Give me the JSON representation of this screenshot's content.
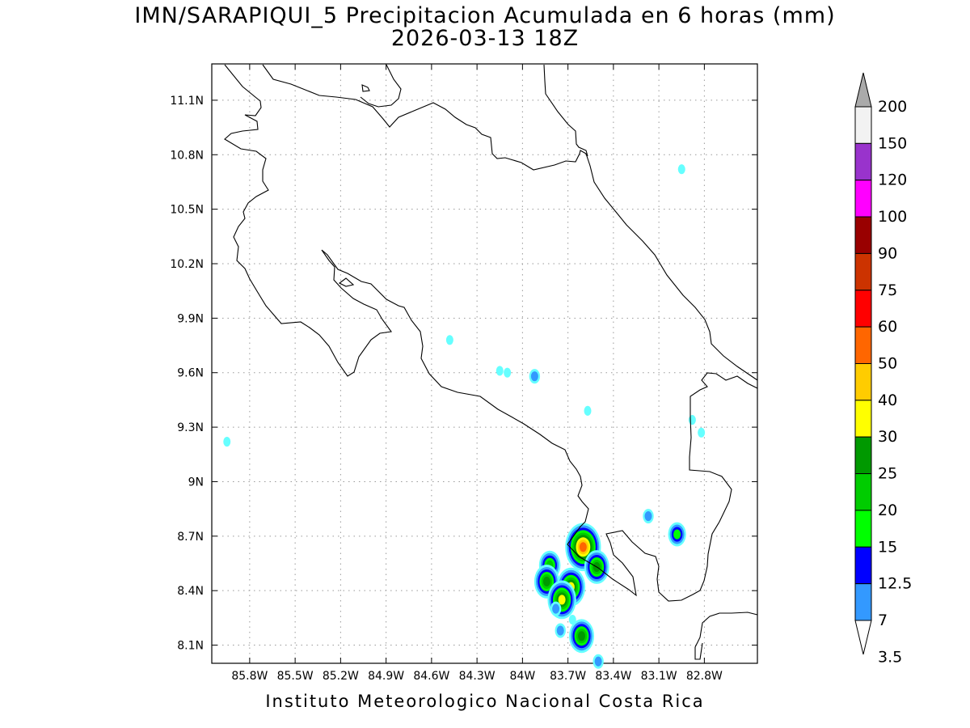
{
  "title": {
    "line1": "IMN/SARAPIQUI_5 Precipitacion Acumulada en 6 horas (mm)",
    "line2": "2026-03-13 18Z"
  },
  "footer": "Instituto Meteorologico Nacional Costa Rica",
  "map": {
    "lon_range": [
      -86.05,
      -82.45
    ],
    "lat_range": [
      8.0,
      11.3
    ],
    "lon_ticks": [
      {
        "value": -85.8,
        "label": "85.8W"
      },
      {
        "value": -85.5,
        "label": "85.5W"
      },
      {
        "value": -85.2,
        "label": "85.2W"
      },
      {
        "value": -84.9,
        "label": "84.9W"
      },
      {
        "value": -84.6,
        "label": "84.6W"
      },
      {
        "value": -84.3,
        "label": "84.3W"
      },
      {
        "value": -84.0,
        "label": "84W"
      },
      {
        "value": -83.7,
        "label": "83.7W"
      },
      {
        "value": -83.4,
        "label": "83.4W"
      },
      {
        "value": -83.1,
        "label": "83.1W"
      },
      {
        "value": -82.8,
        "label": "82.8W"
      }
    ],
    "lat_ticks": [
      {
        "value": 11.1,
        "label": "11.1N"
      },
      {
        "value": 10.8,
        "label": "10.8N"
      },
      {
        "value": 10.5,
        "label": "10.5N"
      },
      {
        "value": 10.2,
        "label": "10.2N"
      },
      {
        "value": 9.9,
        "label": "9.9N"
      },
      {
        "value": 9.6,
        "label": "9.6N"
      },
      {
        "value": 9.3,
        "label": "9.3N"
      },
      {
        "value": 9.0,
        "label": "9N"
      },
      {
        "value": 8.7,
        "label": "8.7N"
      },
      {
        "value": 8.4,
        "label": "8.4N"
      },
      {
        "value": 8.1,
        "label": "8.1N"
      }
    ],
    "grid": true,
    "precip_cells": [
      {
        "lon": -84.48,
        "lat": 9.78,
        "peak_level": 0
      },
      {
        "lon": -84.15,
        "lat": 9.61,
        "peak_level": 0
      },
      {
        "lon": -84.1,
        "lat": 9.6,
        "peak_level": 0
      },
      {
        "lon": -83.92,
        "lat": 9.58,
        "peak_level": 1
      },
      {
        "lon": -83.57,
        "lat": 9.39,
        "peak_level": 0
      },
      {
        "lon": -82.95,
        "lat": 10.72,
        "peak_level": 0
      },
      {
        "lon": -83.17,
        "lat": 8.81,
        "peak_level": 1
      },
      {
        "lon": -82.98,
        "lat": 8.71,
        "peak_level": 3
      },
      {
        "lon": -82.88,
        "lat": 9.34,
        "peak_level": 0
      },
      {
        "lon": -82.82,
        "lat": 9.27,
        "peak_level": 0
      },
      {
        "lon": -85.95,
        "lat": 9.22,
        "peak_level": 0
      },
      {
        "lon": -83.6,
        "lat": 8.64,
        "peak_level": 8
      },
      {
        "lon": -83.51,
        "lat": 8.53,
        "peak_level": 5
      },
      {
        "lon": -83.82,
        "lat": 8.54,
        "peak_level": 4
      },
      {
        "lon": -83.84,
        "lat": 8.45,
        "peak_level": 5
      },
      {
        "lon": -83.68,
        "lat": 8.42,
        "peak_level": 6
      },
      {
        "lon": -83.74,
        "lat": 8.35,
        "peak_level": 6
      },
      {
        "lon": -83.78,
        "lat": 8.3,
        "peak_level": 1
      },
      {
        "lon": -83.75,
        "lat": 8.18,
        "peak_level": 1
      },
      {
        "lon": -83.61,
        "lat": 8.15,
        "peak_level": 5
      },
      {
        "lon": -83.5,
        "lat": 8.01,
        "peak_level": 1
      },
      {
        "lon": -83.67,
        "lat": 8.24,
        "peak_level": 0
      }
    ]
  },
  "colorbar": {
    "levels": [
      "3.5",
      "7",
      "12.5",
      "15",
      "20",
      "25",
      "30",
      "40",
      "50",
      "60",
      "75",
      "90",
      "100",
      "120",
      "150",
      "200"
    ],
    "colors": [
      "#66ffff",
      "#3399ff",
      "#0000ff",
      "#00ff00",
      "#00cc00",
      "#009900",
      "#ffff00",
      "#ffcc00",
      "#ff6600",
      "#ff0000",
      "#cc3300",
      "#990000",
      "#ff00ff",
      "#9933cc",
      "#f2f2f2",
      "#aaaaaa"
    ]
  }
}
